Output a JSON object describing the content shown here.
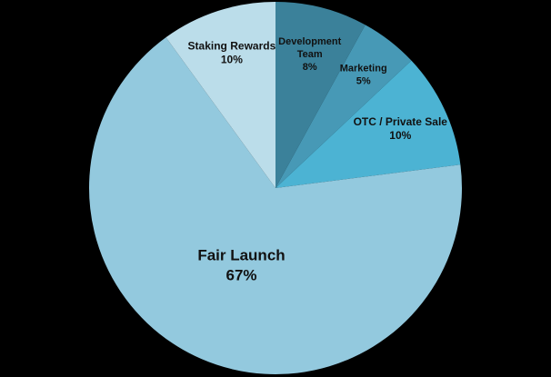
{
  "chart_data": {
    "type": "pie",
    "title": "",
    "background": "#000000",
    "slices": [
      {
        "label_lines": [
          "Development",
          "Team"
        ],
        "value": 8,
        "display": "8%",
        "color": "#3B819A"
      },
      {
        "label_lines": [
          "Marketing"
        ],
        "value": 5,
        "display": "5%",
        "color": "#4799B6"
      },
      {
        "label_lines": [
          "OTC / Private Sale"
        ],
        "value": 10,
        "display": "10%",
        "color": "#4CB3D3"
      },
      {
        "label_lines": [
          "Fair Launch"
        ],
        "value": 67,
        "display": "67%",
        "color": "#93C9DE"
      },
      {
        "label_lines": [
          "Staking Rewards"
        ],
        "value": 10,
        "display": "10%",
        "color": "#BBDDEA"
      }
    ]
  }
}
